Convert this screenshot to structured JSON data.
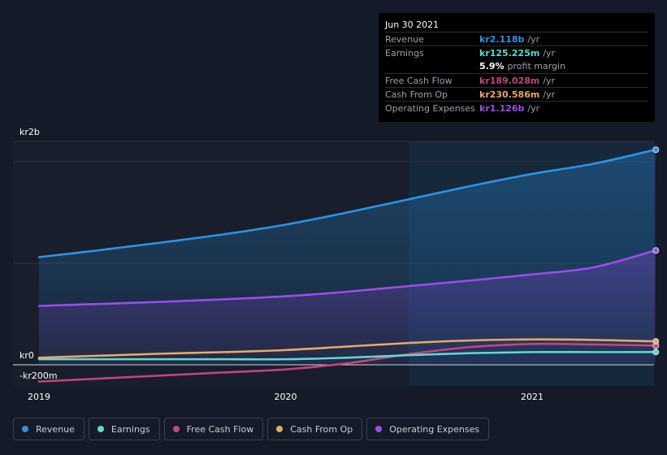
{
  "chart_data": {
    "type": "area",
    "x": [
      2019.0,
      2019.25,
      2019.5,
      2019.75,
      2020.0,
      2020.25,
      2020.5,
      2020.75,
      2021.0,
      2021.25,
      2021.5
    ],
    "y_tick_labels": [
      "kr2b",
      "kr0",
      "-kr200m"
    ],
    "x_tick_labels": [
      "2019",
      "2020",
      "2021"
    ],
    "ylim": [
      -200,
      2200
    ],
    "xlim": [
      2018.9,
      2021.5
    ],
    "past_future_split_x": 2020.5,
    "series": [
      {
        "name": "Revenue",
        "color": "#2b94e6",
        "values": [
          1060,
          1130,
          1205,
          1285,
          1380,
          1500,
          1630,
          1760,
          1880,
          1980,
          2118
        ]
      },
      {
        "name": "Earnings",
        "color": "#5fd9cc",
        "values": [
          55,
          55,
          55,
          55,
          55,
          70,
          95,
          115,
          125,
          125,
          125.225
        ]
      },
      {
        "name": "Free Cash Flow",
        "color": "#c8427f",
        "values": [
          -165,
          -135,
          -105,
          -75,
          -45,
          15,
          105,
          175,
          205,
          200,
          189.028
        ]
      },
      {
        "name": "Cash From Op",
        "color": "#e8a95f",
        "values": [
          70,
          90,
          110,
          125,
          145,
          180,
          215,
          240,
          250,
          245,
          230.586
        ]
      },
      {
        "name": "Operating Expenses",
        "color": "#9d4ced",
        "values": [
          580,
          600,
          620,
          645,
          675,
          720,
          775,
          830,
          890,
          960,
          1126
        ]
      }
    ]
  },
  "tooltip": {
    "date": "Jun 30 2021",
    "unit": "/yr",
    "rows": [
      {
        "label": "Revenue",
        "value": "kr2.118b",
        "color": "#2b94e6"
      },
      {
        "label": "Earnings",
        "value": "kr125.225m",
        "color": "#5fd9cc"
      },
      {
        "label": "Free Cash Flow",
        "value": "kr189.028m",
        "color": "#c8427f"
      },
      {
        "label": "Cash From Op",
        "value": "kr230.586m",
        "color": "#e8a95f"
      },
      {
        "label": "Operating Expenses",
        "value": "kr1.126b",
        "color": "#9d4ced"
      }
    ],
    "margin_value": "5.9%",
    "margin_label": "profit margin"
  },
  "legend": [
    {
      "label": "Revenue",
      "color": "#2b94e6"
    },
    {
      "label": "Earnings",
      "color": "#5fd9cc"
    },
    {
      "label": "Free Cash Flow",
      "color": "#c8427f"
    },
    {
      "label": "Cash From Op",
      "color": "#e8a95f"
    },
    {
      "label": "Operating Expenses",
      "color": "#9d4ced"
    }
  ]
}
